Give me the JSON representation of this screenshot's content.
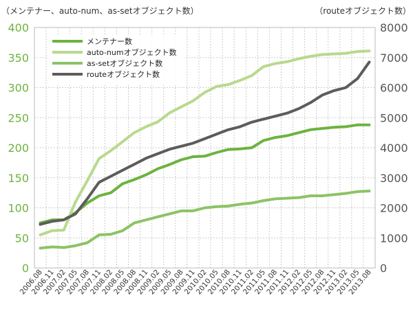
{
  "chart_data": {
    "type": "line",
    "left_axis_title": "（メンテナー、auto-num、as-setオブジェクト数）",
    "right_axis_title": "（routeオブジェクト数）",
    "left_ylim": [
      0,
      400
    ],
    "right_ylim": [
      0,
      8000
    ],
    "left_ticks": [
      "0",
      "50",
      "100",
      "150",
      "200",
      "250",
      "300",
      "350",
      "400"
    ],
    "right_ticks": [
      "0",
      "1000",
      "2000",
      "3000",
      "4000",
      "5000",
      "6000",
      "7000",
      "8000"
    ],
    "categories": [
      "2006.08",
      "2006.11",
      "2007.02",
      "2007.05",
      "2007.08",
      "2007.11",
      "2008.02",
      "2008.05",
      "2008.08",
      "2008.11",
      "2009.02",
      "2009.05",
      "2009.08",
      "2009.11",
      "2010.02",
      "2010.05",
      "2010.08",
      "2010.11",
      "2011.02",
      "2011.05",
      "2011.08",
      "2011.11",
      "2012.02",
      "2012.05",
      "2012.08",
      "2012.11",
      "2013.02",
      "2013.05",
      "2013.08"
    ],
    "grid": true,
    "legend_position": "top-left",
    "series": [
      {
        "name": "メンテナー数",
        "axis": "left",
        "color": "#6db33f",
        "values": [
          75,
          80,
          80,
          92,
          108,
          120,
          125,
          140,
          147,
          155,
          165,
          172,
          180,
          185,
          186,
          192,
          197,
          198,
          200,
          212,
          217,
          220,
          225,
          230,
          232,
          234,
          235,
          238,
          238
        ]
      },
      {
        "name": "auto-numオブジェクト数",
        "axis": "left",
        "color": "#b8d98d",
        "values": [
          55,
          62,
          63,
          110,
          145,
          182,
          195,
          210,
          225,
          235,
          243,
          258,
          268,
          278,
          292,
          302,
          305,
          312,
          320,
          335,
          340,
          343,
          348,
          352,
          355,
          356,
          357,
          360,
          361
        ]
      },
      {
        "name": "as-setオブジェクト数",
        "axis": "left",
        "color": "#8cc366",
        "values": [
          33,
          35,
          34,
          37,
          42,
          55,
          56,
          62,
          75,
          80,
          85,
          90,
          95,
          95,
          100,
          102,
          103,
          106,
          108,
          112,
          115,
          116,
          117,
          120,
          120,
          122,
          124,
          127,
          128
        ]
      },
      {
        "name": "routeオブジェクト数",
        "axis": "right",
        "color": "#5c5c5c",
        "values": [
          1450,
          1550,
          1600,
          1800,
          2300,
          2850,
          3050,
          3250,
          3450,
          3650,
          3800,
          3950,
          4050,
          4150,
          4300,
          4450,
          4600,
          4700,
          4850,
          4950,
          5050,
          5150,
          5300,
          5500,
          5750,
          5900,
          6000,
          6300,
          6850
        ]
      }
    ]
  }
}
